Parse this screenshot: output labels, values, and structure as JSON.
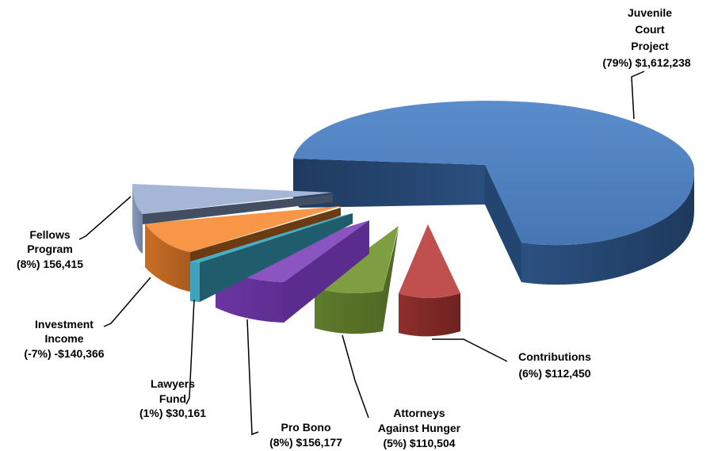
{
  "chart_data": {
    "type": "pie",
    "title": "",
    "style": "3d-exploded",
    "slices": [
      {
        "key": "juvenile",
        "name": "Juvenile Court Project",
        "percent_label": "(79%)",
        "amount_label": "$1,612,238",
        "percent": 79,
        "value": 1612238,
        "color": "#4a7ebb",
        "label_lines": [
          "Juvenile",
          "Court",
          "Project",
          "(79%) $1,612,238"
        ]
      },
      {
        "key": "contributions",
        "name": "Contributions",
        "percent_label": "(6%)",
        "amount_label": "$112,450",
        "percent": 6,
        "value": 112450,
        "color": "#be4b48",
        "label_lines": [
          "Contributions",
          "(6%) $112,450"
        ]
      },
      {
        "key": "attorneys",
        "name": "Attorneys Against Hunger",
        "percent_label": "(5%)",
        "amount_label": "$110,504",
        "percent": 5,
        "value": 110504,
        "color": "#7a9a3c",
        "label_lines": [
          "Attorneys",
          "Against Hunger",
          "(5%) $110,504"
        ]
      },
      {
        "key": "probono",
        "name": "Pro Bono",
        "percent_label": "(8%)",
        "amount_label": "$156,177",
        "percent": 8,
        "value": 156177,
        "color": "#7d4ba8",
        "label_lines": [
          "Pro Bono",
          "(8%) $156,177"
        ]
      },
      {
        "key": "lawyers",
        "name": "Lawyers Fund",
        "percent_label": "(1%)",
        "amount_label": "$30,161",
        "percent": 1,
        "value": 30161,
        "color": "#3aa0b9",
        "label_lines": [
          "Lawyers",
          "Fund",
          "(1%) $30,161"
        ]
      },
      {
        "key": "investment",
        "name": "Investment Income",
        "percent_label": "(-7%)",
        "amount_label": "-$140,366",
        "percent": -7,
        "value": -140366,
        "color": "#e08a3c",
        "label_lines": [
          "Investment",
          "Income",
          "(-7%)  -$140,366"
        ]
      },
      {
        "key": "fellows",
        "name": "Fellows Program",
        "percent_label": "(8%)",
        "amount_label": "156,415",
        "percent": 8,
        "value": 156415,
        "color": "#9aaccc",
        "label_lines": [
          "Fellows",
          "Program",
          "(8%) 156,415"
        ]
      }
    ],
    "legend": "none"
  }
}
